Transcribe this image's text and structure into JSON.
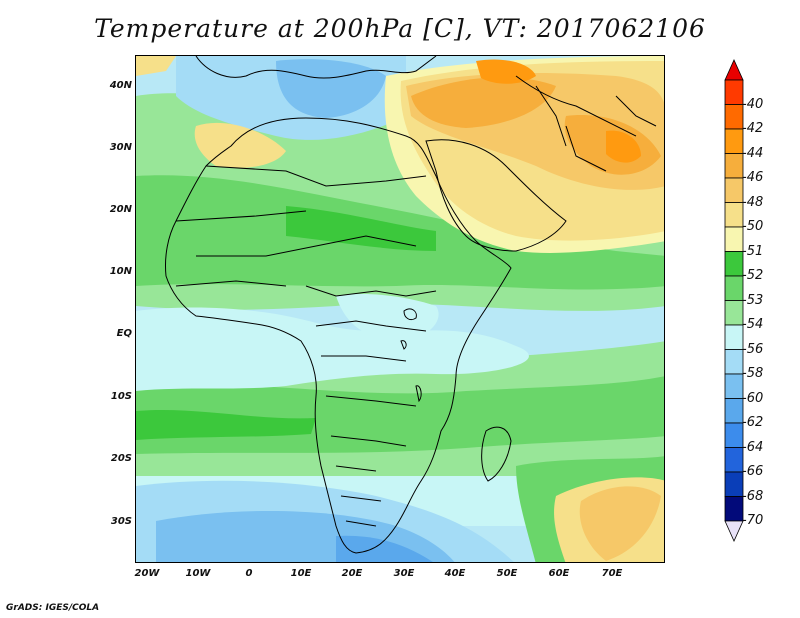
{
  "title": "Temperature at 200hPa [C], VT: 2017062106",
  "footer": "GrADS: IGES/COLA",
  "map": {
    "lat_labels": [
      "40N",
      "30N",
      "20N",
      "10N",
      "EQ",
      "10S",
      "20S",
      "30S"
    ],
    "lon_labels": [
      "20W",
      "10W",
      "0",
      "10E",
      "20E",
      "30E",
      "40E",
      "50E",
      "60E",
      "70E"
    ],
    "background_color": "#b8e8f6"
  },
  "colorbar": {
    "labels": [
      "-40",
      "-42",
      "-44",
      "-46",
      "-48",
      "-50",
      "-51",
      "-52",
      "-53",
      "-54",
      "-56",
      "-58",
      "-60",
      "-62",
      "-64",
      "-66",
      "-68",
      "-70"
    ],
    "colors": [
      "#ff3a00",
      "#ff6a00",
      "#ff9a10",
      "#f6ae3c",
      "#f6c868",
      "#f6e08a",
      "#f8f6b0",
      "#3cc83c",
      "#6ad66a",
      "#98e698",
      "#c8f6f6",
      "#a4dcf6",
      "#7ac0f0",
      "#5aa8ec",
      "#3c8cec",
      "#2264dc",
      "#0a3eb8",
      "#020a7a"
    ],
    "over_color": "#e80000",
    "under_color": "#e8e2f8"
  }
}
